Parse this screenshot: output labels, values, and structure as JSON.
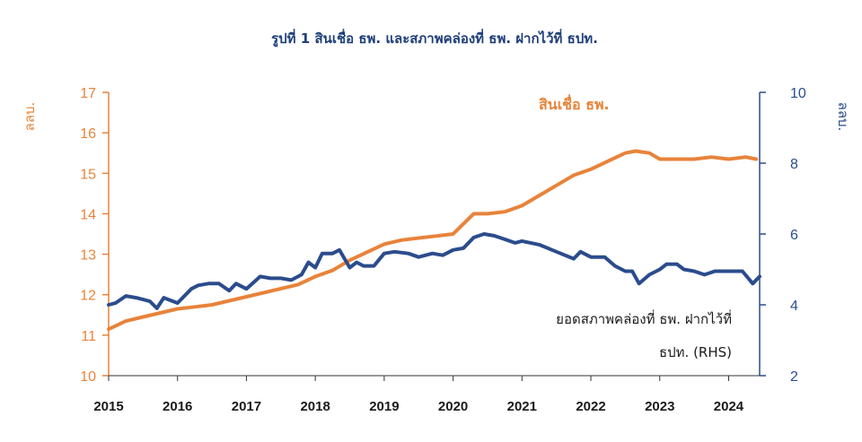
{
  "chart_data": {
    "type": "line",
    "title": "รูปที่ 1 สินเชื่อ ธพ. และสภาพคล่องที่ ธพ. ฝากไว้ที่ ธปท.",
    "y_left_unit": "ลลบ.",
    "y_right_unit": "ลลบ.",
    "ylim_left": [
      10,
      17
    ],
    "ylim_right": [
      2,
      10
    ],
    "yticks_left": [
      "10",
      "11",
      "12",
      "13",
      "14",
      "15",
      "16",
      "17"
    ],
    "yticks_right": [
      "2",
      "4",
      "6",
      "8",
      "10"
    ],
    "xlim": [
      2015,
      2024.45
    ],
    "xticks": [
      "2015",
      "2016",
      "2017",
      "2018",
      "2019",
      "2020",
      "2021",
      "2022",
      "2023",
      "2024"
    ],
    "grid": false,
    "colors": {
      "loans": "#e8833a",
      "liquidity": "#2b4c8c",
      "title": "#1f3f7a"
    },
    "series": [
      {
        "name": "สินเชื่อ ธพ.",
        "axis": "left",
        "x": [
          2015.0,
          2015.25,
          2015.5,
          2015.75,
          2016.0,
          2016.25,
          2016.5,
          2016.75,
          2017.0,
          2017.25,
          2017.5,
          2017.75,
          2018.0,
          2018.25,
          2018.5,
          2018.75,
          2019.0,
          2019.25,
          2019.5,
          2019.75,
          2020.0,
          2020.15,
          2020.3,
          2020.5,
          2020.75,
          2021.0,
          2021.25,
          2021.5,
          2021.75,
          2022.0,
          2022.25,
          2022.5,
          2022.65,
          2022.85,
          2023.0,
          2023.25,
          2023.5,
          2023.75,
          2024.0,
          2024.25,
          2024.4
        ],
        "values": [
          11.15,
          11.35,
          11.45,
          11.55,
          11.65,
          11.7,
          11.75,
          11.85,
          11.95,
          12.05,
          12.15,
          12.25,
          12.45,
          12.6,
          12.85,
          13.05,
          13.25,
          13.35,
          13.4,
          13.45,
          13.5,
          13.75,
          14.0,
          14.0,
          14.05,
          14.2,
          14.45,
          14.7,
          14.95,
          15.1,
          15.3,
          15.5,
          15.55,
          15.5,
          15.35,
          15.35,
          15.35,
          15.4,
          15.35,
          15.4,
          15.35
        ]
      },
      {
        "name": "ยอดสภาพคล่องที่ ธพ. ฝากไว้ที่ ธปท. (RHS)",
        "axis": "right",
        "x": [
          2015.0,
          2015.1,
          2015.25,
          2015.4,
          2015.6,
          2015.7,
          2015.8,
          2016.0,
          2016.2,
          2016.3,
          2016.45,
          2016.6,
          2016.75,
          2016.85,
          2017.0,
          2017.2,
          2017.35,
          2017.5,
          2017.65,
          2017.8,
          2017.9,
          2018.0,
          2018.1,
          2018.25,
          2018.35,
          2018.5,
          2018.6,
          2018.7,
          2018.85,
          2019.0,
          2019.15,
          2019.35,
          2019.5,
          2019.7,
          2019.85,
          2020.0,
          2020.15,
          2020.3,
          2020.45,
          2020.6,
          2020.75,
          2020.9,
          2021.0,
          2021.25,
          2021.5,
          2021.75,
          2021.85,
          2022.0,
          2022.2,
          2022.35,
          2022.5,
          2022.6,
          2022.7,
          2022.85,
          2023.0,
          2023.1,
          2023.25,
          2023.35,
          2023.5,
          2023.65,
          2023.8,
          2024.0,
          2024.2,
          2024.35,
          2024.45
        ],
        "values": [
          4.0,
          4.05,
          4.25,
          4.2,
          4.1,
          3.9,
          4.2,
          4.05,
          4.45,
          4.55,
          4.6,
          4.6,
          4.4,
          4.6,
          4.45,
          4.8,
          4.75,
          4.75,
          4.7,
          4.85,
          5.2,
          5.05,
          5.45,
          5.45,
          5.55,
          5.05,
          5.2,
          5.1,
          5.1,
          5.45,
          5.5,
          5.45,
          5.35,
          5.45,
          5.4,
          5.55,
          5.6,
          5.9,
          6.0,
          5.95,
          5.85,
          5.75,
          5.8,
          5.7,
          5.5,
          5.3,
          5.5,
          5.35,
          5.35,
          5.1,
          4.95,
          4.95,
          4.6,
          4.85,
          5.0,
          5.15,
          5.15,
          5.0,
          4.95,
          4.85,
          4.95,
          4.95,
          4.95,
          4.6,
          4.8
        ]
      }
    ]
  },
  "annotations": {
    "loans_label": "สินเชื่อ ธพ.",
    "liquidity_label_line1": "ยอดสภาพคล่องที่ ธพ. ฝากไว้ที่",
    "liquidity_label_line2": "ธปท. (RHS)"
  }
}
